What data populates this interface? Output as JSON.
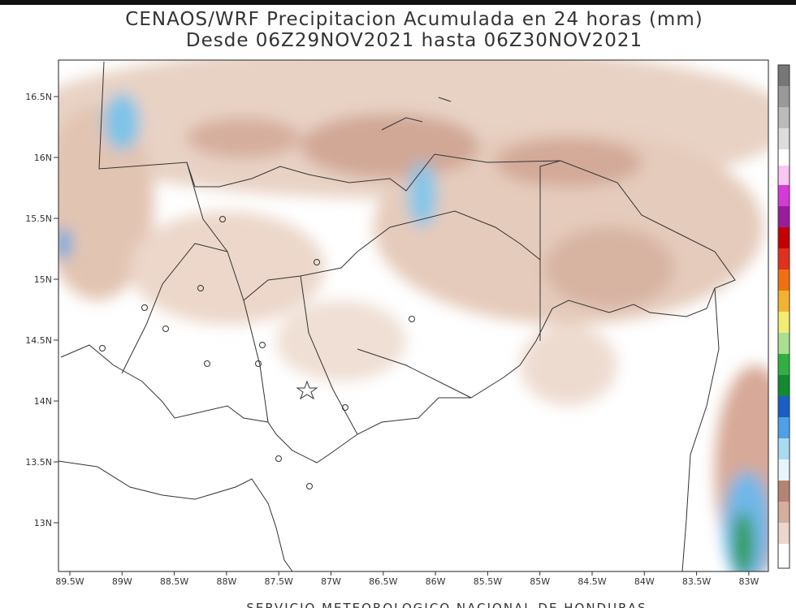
{
  "header": {
    "title": "CENAOS/WRF Precipitacion Acumulada en 24 horas (mm)",
    "subtitle": "Desde 06Z29NOV2021 hasta 06Z30NOV2021"
  },
  "map": {
    "lat_labels": [
      "16.5N",
      "16N",
      "15.5N",
      "15N",
      "14.5N",
      "14N",
      "13.5N",
      "13N"
    ],
    "lon_labels": [
      "89.5W",
      "89W",
      "88.5W",
      "88W",
      "87.5W",
      "87W",
      "86.5W",
      "86W",
      "85.5W",
      "85W",
      "84.5W",
      "84W",
      "83.5W",
      "83W"
    ]
  },
  "footer": {
    "text": "SERVICIO METEOROLOGICO NACIONAL DE HONDURAS"
  }
}
